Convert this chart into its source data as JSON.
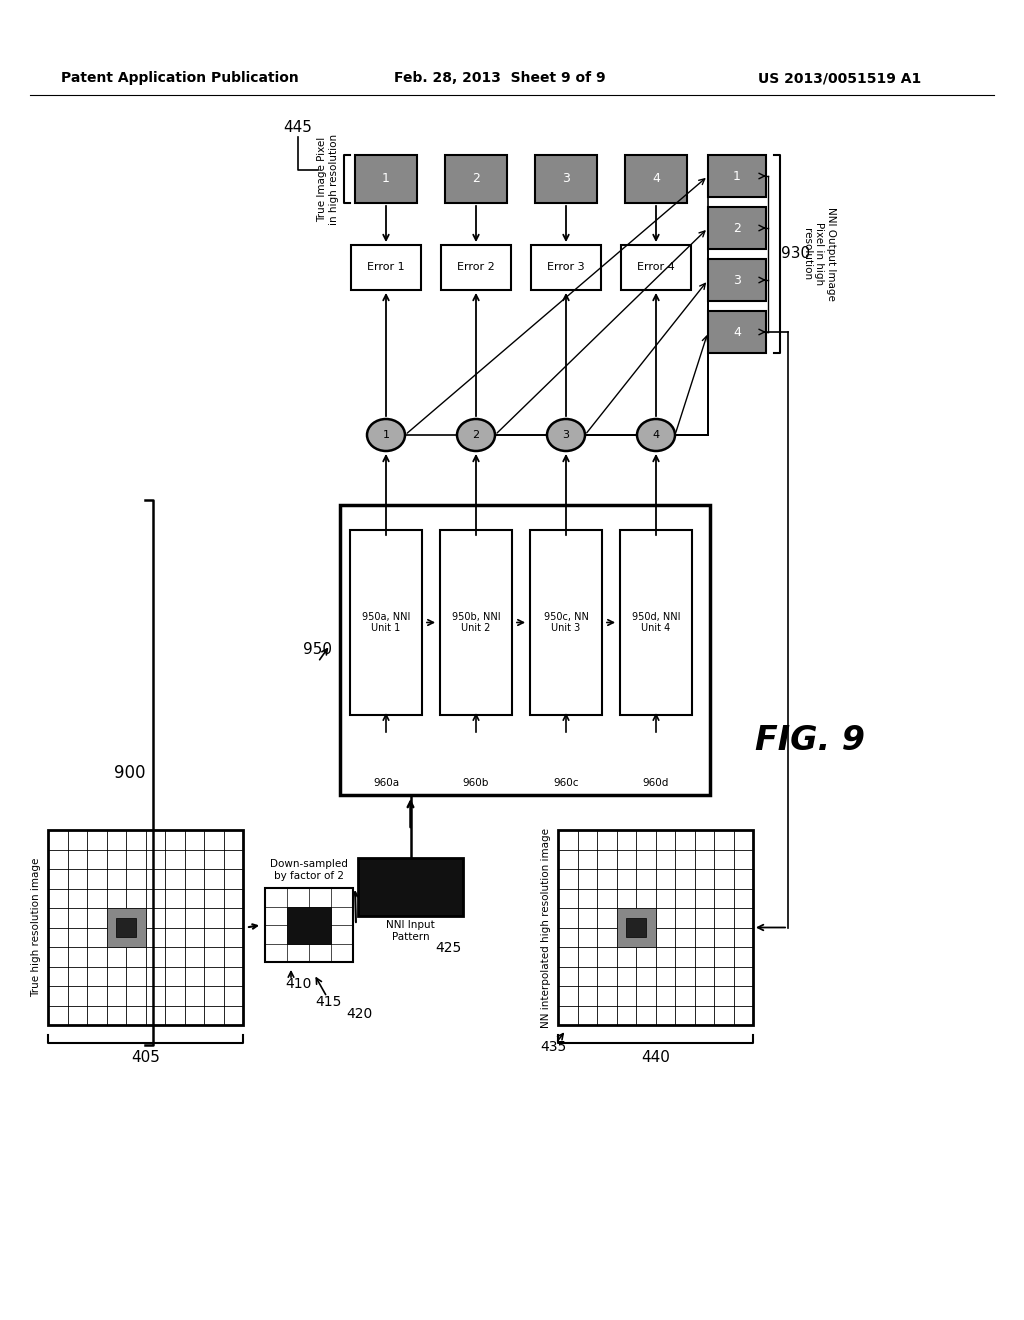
{
  "title_left": "Patent Application Publication",
  "title_mid": "Feb. 28, 2013  Sheet 9 of 9",
  "title_right": "US 2013/0051519 A1",
  "fig_label": "FIG. 9",
  "bg_color": "#ffffff",
  "label_900": "900",
  "label_950": "950",
  "label_445": "445",
  "label_405": "405",
  "label_410": "410",
  "label_415": "415",
  "label_420": "420",
  "label_425": "425",
  "label_435": "435",
  "label_440": "440",
  "label_930": "930",
  "nni_units": [
    "950a, NNI\nUnit 1",
    "950b, NNI\nUnit 2",
    "950c, NN\nUnit 3",
    "950d, NNI\nUnit 4"
  ],
  "nni_inputs": [
    "960a",
    "960b",
    "960c",
    "960d"
  ],
  "error_labels": [
    "Error 1",
    "Error 2",
    "Error 3",
    "Error 4"
  ],
  "true_pixel_label": "True Image Pixel\nin high resolution",
  "nni_output_label": "NNI Output Image\nPixel in high\nresolution",
  "nni_input_label": "NNI Input\nPattern",
  "true_hr_label": "True high resolution image",
  "downsampled_label": "Down-sampled\nby factor of 2",
  "nn_interp_label": "NN interpolated high resolution image"
}
